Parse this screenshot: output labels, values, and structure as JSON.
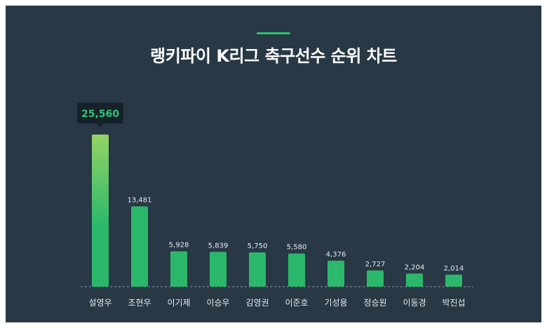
{
  "chart_data": {
    "type": "bar",
    "title": "랭키파이 K리그 축구선수 순위 차트",
    "categories": [
      "설영우",
      "조현우",
      "이기제",
      "이승우",
      "김영권",
      "이준호",
      "기성용",
      "정승원",
      "이동경",
      "박진섭"
    ],
    "values": [
      25560,
      13481,
      5928,
      5839,
      5750,
      5580,
      4376,
      2727,
      2204,
      2014
    ],
    "value_labels": [
      "25,560",
      "13,481",
      "5,928",
      "5,839",
      "5,750",
      "5,580",
      "4,376",
      "2,727",
      "2,204",
      "2,014"
    ],
    "ylim": [
      0,
      25560
    ],
    "grid": false,
    "legend": "none",
    "highlight_index": 0,
    "colors": {
      "background": "#283845",
      "bar": "#2bb86a",
      "highlight_top": "#94d466",
      "highlight_bottom": "#2bb86a",
      "tooltip_bg": "#15222c",
      "tooltip_text": "#35c26f",
      "label_text": "#e6ebee",
      "accent": "#2fbf6b"
    }
  }
}
